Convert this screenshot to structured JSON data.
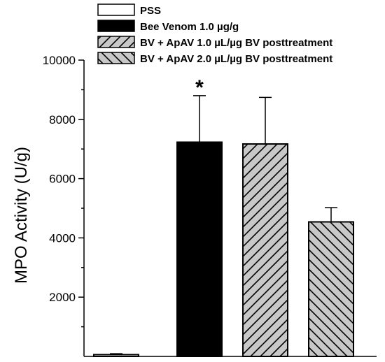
{
  "chart_data": {
    "type": "bar",
    "categories": [
      "PSS",
      "Bee Venom 1.0 µg/g",
      "BV + ApAV 1.0 µL/µg BV posttreatment",
      "BV + ApAV 2.0 µL/µg BV posttreatment"
    ],
    "values": [
      60,
      7230,
      7170,
      4540
    ],
    "errors": [
      30,
      1570,
      1570,
      480
    ],
    "ylabel": "MPO Activity (U/g)",
    "ylim": [
      0,
      10000
    ],
    "yticks": [
      2000,
      4000,
      6000,
      8000,
      10000
    ],
    "annotations": [
      {
        "category_index": 1,
        "text": "*"
      }
    ],
    "legend": {
      "placement": "top",
      "entries": [
        {
          "label": "PSS",
          "fill": "white"
        },
        {
          "label": "Bee Venom 1.0 µg/g",
          "fill": "black"
        },
        {
          "label": "BV + ApAV 1.0 µL/µg BV posttreatment",
          "fill": "hatch-forward"
        },
        {
          "label": "BV + ApAV 2.0 µL/µg BV posttreatment",
          "fill": "hatch-back"
        }
      ]
    },
    "grid": false,
    "colors": {
      "axis": "#000000",
      "hatch_bg": "#c8c8c8",
      "solid": "#000000",
      "empty": "#ffffff"
    }
  }
}
